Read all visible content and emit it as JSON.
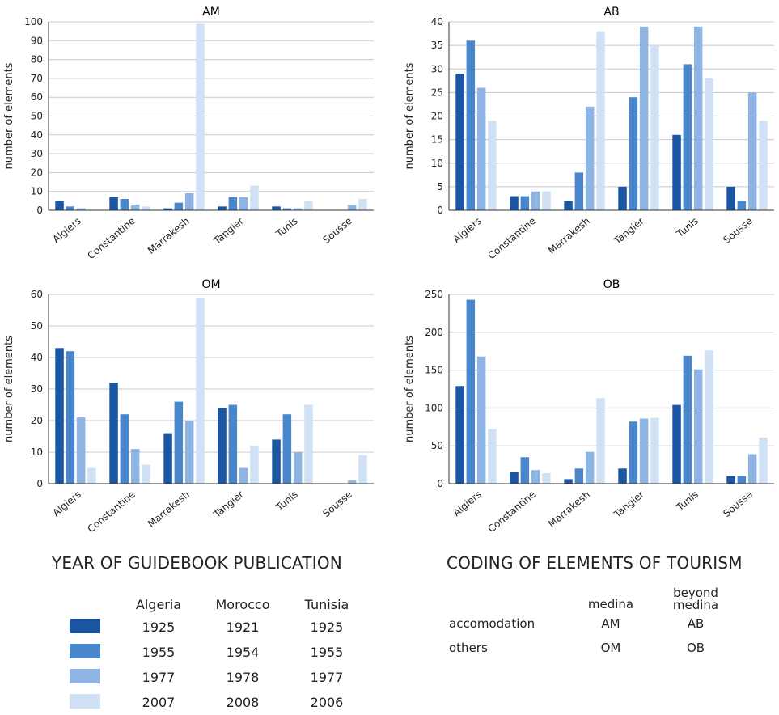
{
  "colors": [
    "#1a56a3",
    "#4a86cc",
    "#8db4e2",
    "#d0e1f5"
  ],
  "chart_data": [
    {
      "type": "bar",
      "title": "AM",
      "ylabel": "number of elements",
      "categories": [
        "Algiers",
        "Constantine",
        "Marrakesh",
        "Tangier",
        "Tunis",
        "Sousse"
      ],
      "ylim": [
        0,
        100
      ],
      "yticks": [
        0,
        10,
        20,
        30,
        40,
        50,
        60,
        70,
        80,
        90,
        100
      ],
      "grid": true,
      "series": [
        {
          "values": [
            5,
            7,
            1,
            2,
            2,
            0
          ]
        },
        {
          "values": [
            2,
            6,
            4,
            7,
            1,
            0
          ]
        },
        {
          "values": [
            1,
            3,
            9,
            7,
            1,
            3
          ]
        },
        {
          "values": [
            0,
            2,
            99,
            13,
            5,
            6
          ]
        }
      ]
    },
    {
      "type": "bar",
      "title": "AB",
      "ylabel": "number of elements",
      "categories": [
        "Algiers",
        "Constantine",
        "Marrakesh",
        "Tangier",
        "Tunis",
        "Sousse"
      ],
      "ylim": [
        0,
        40
      ],
      "yticks": [
        0,
        5,
        10,
        15,
        20,
        25,
        30,
        35,
        40
      ],
      "grid": true,
      "series": [
        {
          "values": [
            29,
            3,
            2,
            5,
            16,
            5
          ]
        },
        {
          "values": [
            36,
            3,
            8,
            24,
            31,
            2
          ]
        },
        {
          "values": [
            26,
            4,
            22,
            39,
            39,
            25
          ]
        },
        {
          "values": [
            19,
            4,
            38,
            35,
            28,
            19
          ]
        }
      ]
    },
    {
      "type": "bar",
      "title": "OM",
      "ylabel": "number of elements",
      "categories": [
        "Algiers",
        "Constantine",
        "Marrakesh",
        "Tangier",
        "Tunis",
        "Sousse"
      ],
      "ylim": [
        0,
        60
      ],
      "yticks": [
        0,
        10,
        20,
        30,
        40,
        50,
        60
      ],
      "grid": true,
      "series": [
        {
          "values": [
            43,
            32,
            16,
            24,
            14,
            0
          ]
        },
        {
          "values": [
            42,
            22,
            26,
            25,
            22,
            0
          ]
        },
        {
          "values": [
            21,
            11,
            20,
            5,
            10,
            1
          ]
        },
        {
          "values": [
            5,
            6,
            59,
            12,
            25,
            9
          ]
        }
      ]
    },
    {
      "type": "bar",
      "title": "OB",
      "ylabel": "number of elements",
      "categories": [
        "Algiers",
        "Constantine",
        "Marrakesh",
        "Tangier",
        "Tunis",
        "Sousse"
      ],
      "ylim": [
        0,
        250
      ],
      "yticks": [
        0,
        50,
        100,
        150,
        200,
        250
      ],
      "grid": true,
      "series": [
        {
          "values": [
            129,
            15,
            6,
            20,
            104,
            10
          ]
        },
        {
          "values": [
            243,
            35,
            20,
            82,
            169,
            10
          ]
        },
        {
          "values": [
            168,
            18,
            42,
            86,
            151,
            39
          ]
        },
        {
          "values": [
            72,
            14,
            113,
            87,
            176,
            61
          ]
        }
      ]
    }
  ],
  "legend": {
    "title": "YEAR OF GUIDEBOOK PUBLICATION",
    "columns": [
      "Algeria",
      "Morocco",
      "Tunisia"
    ],
    "rows": [
      {
        "color": "#1a56a3",
        "values": [
          "1925",
          "1921",
          "1925"
        ]
      },
      {
        "color": "#4a86cc",
        "values": [
          "1955",
          "1954",
          "1955"
        ]
      },
      {
        "color": "#8db4e2",
        "values": [
          "1977",
          "1978",
          "1977"
        ]
      },
      {
        "color": "#d0e1f5",
        "values": [
          "2007",
          "2008",
          "2006"
        ]
      }
    ]
  },
  "coding": {
    "title": "CODING OF ELEMENTS OF TOURISM",
    "col1": "medina",
    "col2_line1": "beyond",
    "col2_line2": "medina",
    "rows": [
      {
        "label": "accomodation",
        "a": "AM",
        "b": "AB"
      },
      {
        "label": "others",
        "a": "OM",
        "b": "OB"
      }
    ]
  }
}
